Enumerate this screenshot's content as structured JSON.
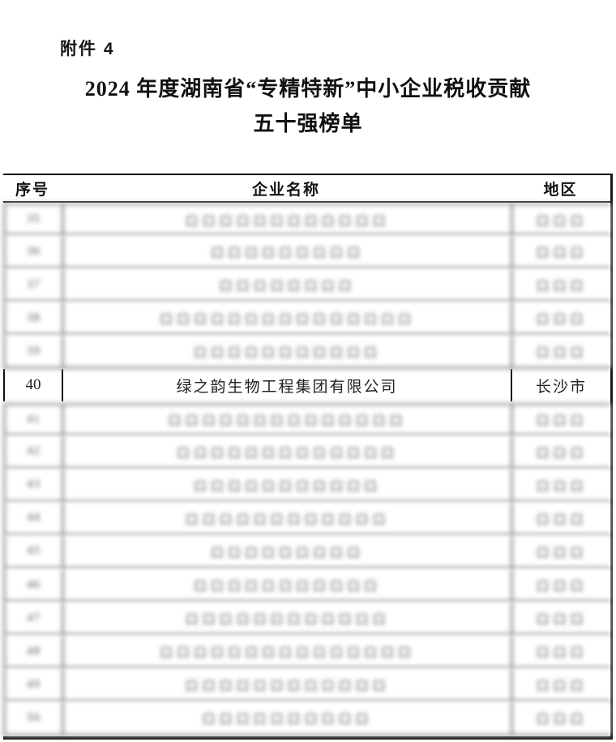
{
  "page": {
    "attachment_label": "附件 4",
    "title_line1": "2024 年度湖南省“专精特新”中小企业税收贡献",
    "title_line2": "五十强榜单"
  },
  "table": {
    "headers": [
      "序号",
      "企业名称",
      "地区"
    ],
    "highlight_row_no": "40",
    "rows": [
      {
        "no": "35",
        "name": "口口口口口口口口口口口口",
        "region": "口口口",
        "redacted": true
      },
      {
        "no": "36",
        "name": "口口口口口口口口口",
        "region": "口口口",
        "redacted": true
      },
      {
        "no": "37",
        "name": "口口口口口口口口",
        "region": "口口口",
        "redacted": true
      },
      {
        "no": "38",
        "name": "口口口口口口口口口口口口口口口",
        "region": "口口口",
        "redacted": true
      },
      {
        "no": "39",
        "name": "口口口口口口口口口口口",
        "region": "口口口",
        "redacted": true
      },
      {
        "no": "40",
        "name": "绿之韵生物工程集团有限公司",
        "region": "长沙市",
        "redacted": false
      },
      {
        "no": "41",
        "name": "口口口口口口口口口口口口口口",
        "region": "口口口",
        "redacted": true
      },
      {
        "no": "42",
        "name": "口口口口口口口口口口口口口",
        "region": "口口口",
        "redacted": true
      },
      {
        "no": "43",
        "name": "口口口口口口口口口口口",
        "region": "口口口",
        "redacted": true
      },
      {
        "no": "44",
        "name": "口口口口口口口口口口口口",
        "region": "口口口",
        "redacted": true
      },
      {
        "no": "45",
        "name": "口口口口口口口口口",
        "region": "口口口",
        "redacted": true
      },
      {
        "no": "46",
        "name": "口口口口口口口口口口口",
        "region": "口口口",
        "redacted": true
      },
      {
        "no": "47",
        "name": "口口口口口口口口口口口口",
        "region": "口口口",
        "redacted": true
      },
      {
        "no": "48",
        "name": "口口口口口口口口口口口口口口口",
        "region": "口口口",
        "redacted": true
      },
      {
        "no": "49",
        "name": "口口口口口口口口口口口口",
        "region": "口口口",
        "redacted": true
      },
      {
        "no": "50",
        "name": "口口口口口口口口口口",
        "region": "口口口",
        "redacted": true
      }
    ]
  },
  "colors": {
    "border_sharp": "#111111",
    "border_blurred": "#909090",
    "text_primary": "#1a1a1a",
    "text_redacted": "#4f4f4f",
    "background": "#ffffff"
  }
}
